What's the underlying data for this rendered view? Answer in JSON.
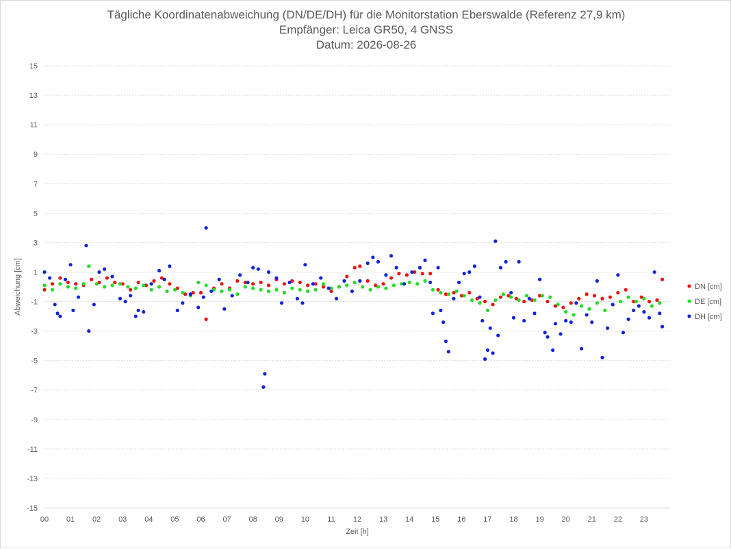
{
  "chart_data": {
    "type": "scatter",
    "title": "Tägliche Koordinatenabweichung (DN/DE/DH) für die Monitorstation Eberswalde (Referenz 27,9 km)",
    "subtitle_lines": [
      "Empfänger: Leica GR50, 4 GNSS",
      "Datum: 2026-08-26"
    ],
    "xlabel": "Zeit [h]",
    "ylabel": "Abweichung [cm]",
    "xlim": [
      0,
      24
    ],
    "ylim": [
      -15,
      15
    ],
    "y_ticks": [
      15,
      13,
      11,
      9,
      7,
      5,
      3,
      1,
      -1,
      -3,
      -5,
      -7,
      -9,
      -11,
      -13,
      -15
    ],
    "y_tick_labels": [
      "15",
      "13",
      "11",
      "9",
      "7",
      "5",
      "3",
      "1",
      "-1",
      "-3",
      "-5",
      "-7",
      "-9",
      "-11",
      "-13",
      "-15"
    ],
    "x_ticks": [
      0,
      1,
      2,
      3,
      4,
      5,
      6,
      7,
      8,
      9,
      10,
      11,
      12,
      13,
      14,
      15,
      16,
      17,
      18,
      19,
      20,
      21,
      22,
      23
    ],
    "x_tick_labels": [
      "00",
      "01",
      "02",
      "03",
      "04",
      "05",
      "06",
      "07",
      "08",
      "09",
      "10",
      "11",
      "12",
      "13",
      "14",
      "15",
      "16",
      "17",
      "18",
      "19",
      "20",
      "21",
      "22",
      "23"
    ],
    "grid": "horizontal-dotted",
    "legend_position": "right",
    "series": [
      {
        "name": "DN [cm]",
        "color": "#ee1111",
        "points": [
          [
            0.0,
            -0.2
          ],
          [
            0.3,
            0.2
          ],
          [
            0.6,
            0.6
          ],
          [
            0.9,
            0.3
          ],
          [
            1.2,
            0.2
          ],
          [
            1.5,
            0.1
          ],
          [
            1.8,
            0.5
          ],
          [
            2.1,
            0.3
          ],
          [
            2.4,
            0.6
          ],
          [
            2.7,
            0.3
          ],
          [
            3.0,
            0.2
          ],
          [
            3.3,
            -0.2
          ],
          [
            3.6,
            0.3
          ],
          [
            3.9,
            0.1
          ],
          [
            4.2,
            0.4
          ],
          [
            4.5,
            0.6
          ],
          [
            4.8,
            0.2
          ],
          [
            5.1,
            -0.1
          ],
          [
            5.4,
            -0.5
          ],
          [
            5.7,
            -0.4
          ],
          [
            6.0,
            -0.4
          ],
          [
            6.2,
            -2.2
          ],
          [
            6.5,
            -0.1
          ],
          [
            6.8,
            0.2
          ],
          [
            7.1,
            -0.1
          ],
          [
            7.4,
            0.4
          ],
          [
            7.7,
            0.3
          ],
          [
            8.0,
            0.2
          ],
          [
            8.3,
            0.3
          ],
          [
            8.6,
            0.1
          ],
          [
            8.9,
            0.5
          ],
          [
            9.2,
            0.2
          ],
          [
            9.5,
            0.4
          ],
          [
            9.8,
            0.3
          ],
          [
            10.1,
            0.1
          ],
          [
            10.4,
            0.2
          ],
          [
            10.7,
            0.0
          ],
          [
            11.0,
            -0.3
          ],
          [
            11.3,
            0.0
          ],
          [
            11.6,
            0.7
          ],
          [
            11.9,
            1.3
          ],
          [
            12.1,
            1.4
          ],
          [
            12.4,
            0.4
          ],
          [
            12.7,
            0.1
          ],
          [
            13.0,
            0.2
          ],
          [
            13.3,
            0.6
          ],
          [
            13.6,
            0.9
          ],
          [
            13.9,
            0.8
          ],
          [
            14.2,
            1.0
          ],
          [
            14.5,
            0.9
          ],
          [
            14.8,
            0.9
          ],
          [
            15.1,
            -0.2
          ],
          [
            15.4,
            -0.5
          ],
          [
            15.7,
            -0.4
          ],
          [
            16.0,
            -0.6
          ],
          [
            16.3,
            -0.4
          ],
          [
            16.6,
            -0.8
          ],
          [
            16.9,
            -1.0
          ],
          [
            17.2,
            -1.2
          ],
          [
            17.5,
            -0.7
          ],
          [
            17.8,
            -0.6
          ],
          [
            18.1,
            -0.8
          ],
          [
            18.4,
            -1.0
          ],
          [
            18.7,
            -0.9
          ],
          [
            19.0,
            -0.6
          ],
          [
            19.3,
            -1.0
          ],
          [
            19.6,
            -1.3
          ],
          [
            19.9,
            -1.4
          ],
          [
            20.2,
            -1.1
          ],
          [
            20.5,
            -0.8
          ],
          [
            20.8,
            -0.5
          ],
          [
            21.1,
            -0.6
          ],
          [
            21.4,
            -0.8
          ],
          [
            21.7,
            -0.7
          ],
          [
            22.0,
            -0.4
          ],
          [
            22.3,
            -0.2
          ],
          [
            22.6,
            -1.0
          ],
          [
            22.9,
            -0.7
          ],
          [
            23.2,
            -1.0
          ],
          [
            23.5,
            -0.9
          ],
          [
            23.7,
            0.5
          ]
        ]
      },
      {
        "name": "DE [cm]",
        "color": "#22dd22",
        "points": [
          [
            0.0,
            0.1
          ],
          [
            0.3,
            -0.2
          ],
          [
            0.6,
            0.2
          ],
          [
            0.9,
            0.0
          ],
          [
            1.2,
            -0.1
          ],
          [
            1.5,
            0.2
          ],
          [
            1.7,
            1.4
          ],
          [
            2.0,
            0.2
          ],
          [
            2.3,
            0.0
          ],
          [
            2.6,
            0.1
          ],
          [
            2.9,
            0.2
          ],
          [
            3.2,
            0.0
          ],
          [
            3.5,
            -0.1
          ],
          [
            3.8,
            0.1
          ],
          [
            4.1,
            -0.2
          ],
          [
            4.4,
            0.0
          ],
          [
            4.7,
            -0.3
          ],
          [
            5.0,
            -0.2
          ],
          [
            5.3,
            -0.4
          ],
          [
            5.6,
            -0.6
          ],
          [
            5.9,
            0.3
          ],
          [
            6.2,
            0.1
          ],
          [
            6.5,
            -0.2
          ],
          [
            6.8,
            -0.3
          ],
          [
            7.1,
            -0.2
          ],
          [
            7.4,
            -0.5
          ],
          [
            7.7,
            0.0
          ],
          [
            8.0,
            -0.1
          ],
          [
            8.3,
            -0.2
          ],
          [
            8.6,
            -0.3
          ],
          [
            8.9,
            -0.2
          ],
          [
            9.2,
            -0.4
          ],
          [
            9.5,
            -0.1
          ],
          [
            9.8,
            -0.2
          ],
          [
            10.1,
            -0.3
          ],
          [
            10.4,
            -0.2
          ],
          [
            10.7,
            0.2
          ],
          [
            11.0,
            -0.1
          ],
          [
            11.3,
            0.0
          ],
          [
            11.6,
            0.1
          ],
          [
            11.9,
            0.3
          ],
          [
            12.2,
            0.0
          ],
          [
            12.5,
            -0.2
          ],
          [
            12.8,
            0.0
          ],
          [
            13.1,
            -0.1
          ],
          [
            13.4,
            0.1
          ],
          [
            13.7,
            0.2
          ],
          [
            14.0,
            0.3
          ],
          [
            14.3,
            0.2
          ],
          [
            14.6,
            0.4
          ],
          [
            14.9,
            -0.2
          ],
          [
            15.2,
            -0.4
          ],
          [
            15.5,
            -0.5
          ],
          [
            15.8,
            -0.3
          ],
          [
            16.1,
            -0.6
          ],
          [
            16.4,
            -0.9
          ],
          [
            16.7,
            -1.1
          ],
          [
            17.0,
            -1.6
          ],
          [
            17.3,
            -0.9
          ],
          [
            17.6,
            -0.5
          ],
          [
            17.9,
            -0.7
          ],
          [
            18.2,
            -0.9
          ],
          [
            18.5,
            -0.6
          ],
          [
            18.8,
            -0.9
          ],
          [
            19.1,
            -0.6
          ],
          [
            19.4,
            -0.7
          ],
          [
            19.7,
            -1.2
          ],
          [
            20.0,
            -1.7
          ],
          [
            20.3,
            -1.9
          ],
          [
            20.6,
            -1.3
          ],
          [
            20.9,
            -1.5
          ],
          [
            21.2,
            -1.1
          ],
          [
            21.5,
            -1.6
          ],
          [
            21.8,
            -1.2
          ],
          [
            22.1,
            -1.0
          ],
          [
            22.4,
            -0.7
          ],
          [
            22.7,
            -1.0
          ],
          [
            23.0,
            -0.8
          ],
          [
            23.3,
            -1.3
          ],
          [
            23.6,
            -1.1
          ]
        ]
      },
      {
        "name": "DH [cm]",
        "color": "#1122dd",
        "points": [
          [
            0.0,
            1.0
          ],
          [
            0.2,
            0.6
          ],
          [
            0.4,
            -1.2
          ],
          [
            0.5,
            -1.8
          ],
          [
            0.6,
            -2.0
          ],
          [
            0.8,
            0.5
          ],
          [
            1.0,
            1.5
          ],
          [
            1.1,
            -1.6
          ],
          [
            1.3,
            -0.7
          ],
          [
            1.6,
            2.8
          ],
          [
            1.7,
            -3.0
          ],
          [
            1.9,
            -1.2
          ],
          [
            2.1,
            1.0
          ],
          [
            2.3,
            1.2
          ],
          [
            2.6,
            0.7
          ],
          [
            2.9,
            -0.8
          ],
          [
            3.1,
            -1.0
          ],
          [
            3.3,
            -0.6
          ],
          [
            3.5,
            -2.0
          ],
          [
            3.6,
            -1.6
          ],
          [
            3.8,
            -1.7
          ],
          [
            4.1,
            0.2
          ],
          [
            4.4,
            1.1
          ],
          [
            4.6,
            0.5
          ],
          [
            4.8,
            1.4
          ],
          [
            5.1,
            -1.6
          ],
          [
            5.3,
            -1.1
          ],
          [
            5.6,
            -0.5
          ],
          [
            5.9,
            -1.4
          ],
          [
            6.1,
            -0.7
          ],
          [
            6.2,
            4.0
          ],
          [
            6.4,
            -0.3
          ],
          [
            6.7,
            0.5
          ],
          [
            6.9,
            -1.5
          ],
          [
            7.2,
            -0.6
          ],
          [
            7.5,
            0.8
          ],
          [
            7.8,
            0.3
          ],
          [
            8.0,
            1.3
          ],
          [
            8.2,
            1.2
          ],
          [
            8.4,
            -6.8
          ],
          [
            8.45,
            -5.9
          ],
          [
            8.6,
            1.0
          ],
          [
            8.9,
            0.6
          ],
          [
            9.1,
            -1.1
          ],
          [
            9.4,
            0.3
          ],
          [
            9.7,
            -0.8
          ],
          [
            9.9,
            -1.1
          ],
          [
            10.0,
            1.5
          ],
          [
            10.3,
            0.2
          ],
          [
            10.6,
            0.6
          ],
          [
            10.9,
            -0.1
          ],
          [
            11.2,
            -0.8
          ],
          [
            11.5,
            0.4
          ],
          [
            11.8,
            -0.3
          ],
          [
            12.1,
            0.4
          ],
          [
            12.4,
            1.6
          ],
          [
            12.6,
            2.0
          ],
          [
            12.8,
            1.7
          ],
          [
            13.1,
            0.8
          ],
          [
            13.3,
            2.1
          ],
          [
            13.5,
            1.3
          ],
          [
            13.8,
            0.2
          ],
          [
            14.1,
            1.0
          ],
          [
            14.4,
            1.3
          ],
          [
            14.6,
            1.8
          ],
          [
            14.8,
            0.3
          ],
          [
            14.9,
            -1.8
          ],
          [
            15.1,
            1.3
          ],
          [
            15.2,
            -1.6
          ],
          [
            15.3,
            -2.4
          ],
          [
            15.4,
            -3.7
          ],
          [
            15.5,
            -4.4
          ],
          [
            15.7,
            -0.8
          ],
          [
            15.9,
            0.3
          ],
          [
            16.1,
            0.9
          ],
          [
            16.3,
            1.0
          ],
          [
            16.5,
            1.4
          ],
          [
            16.7,
            -0.7
          ],
          [
            16.8,
            -2.3
          ],
          [
            16.9,
            -4.9
          ],
          [
            17.0,
            -4.3
          ],
          [
            17.1,
            -2.8
          ],
          [
            17.2,
            -4.5
          ],
          [
            17.3,
            3.1
          ],
          [
            17.4,
            -3.3
          ],
          [
            17.5,
            1.3
          ],
          [
            17.7,
            1.7
          ],
          [
            17.9,
            -0.4
          ],
          [
            18.0,
            -2.1
          ],
          [
            18.2,
            1.7
          ],
          [
            18.4,
            -2.3
          ],
          [
            18.6,
            -0.8
          ],
          [
            18.8,
            -1.8
          ],
          [
            19.0,
            0.5
          ],
          [
            19.2,
            -3.1
          ],
          [
            19.3,
            -3.4
          ],
          [
            19.5,
            -4.3
          ],
          [
            19.6,
            -2.5
          ],
          [
            19.8,
            -3.2
          ],
          [
            20.0,
            -2.3
          ],
          [
            20.2,
            -2.4
          ],
          [
            20.4,
            -1.1
          ],
          [
            20.6,
            -4.2
          ],
          [
            20.8,
            -1.9
          ],
          [
            21.0,
            -2.4
          ],
          [
            21.2,
            0.4
          ],
          [
            21.4,
            -4.8
          ],
          [
            21.6,
            -2.8
          ],
          [
            21.8,
            -1.2
          ],
          [
            22.0,
            0.8
          ],
          [
            22.2,
            -3.1
          ],
          [
            22.4,
            -2.2
          ],
          [
            22.6,
            -1.6
          ],
          [
            22.8,
            -1.3
          ],
          [
            23.0,
            -1.7
          ],
          [
            23.2,
            -2.1
          ],
          [
            23.4,
            1.0
          ],
          [
            23.6,
            -1.8
          ],
          [
            23.7,
            -2.7
          ]
        ]
      }
    ]
  }
}
